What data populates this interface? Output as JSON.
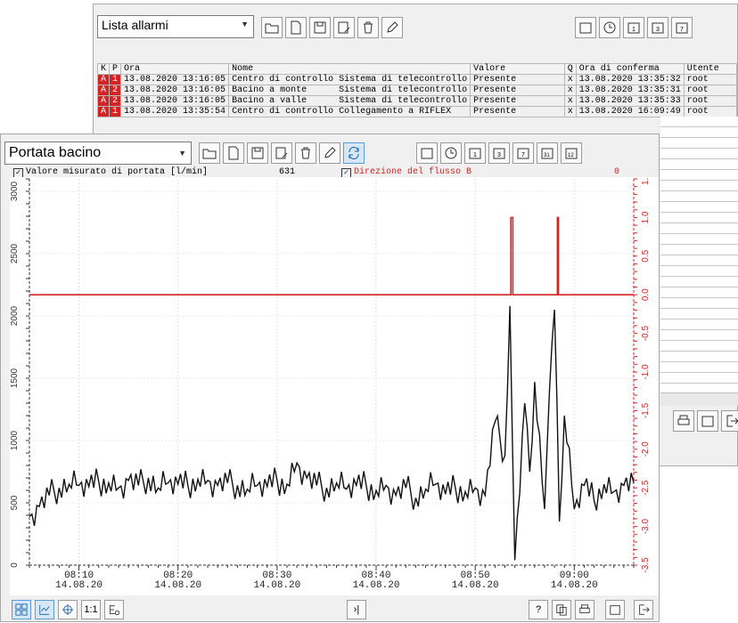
{
  "alarm_window": {
    "title": "Lista allarmi",
    "columns": [
      "K",
      "P",
      "Ora",
      "Nome",
      "",
      "Valore",
      "Q",
      "Ora di conferma",
      "Utente"
    ],
    "rows": [
      {
        "k": "A",
        "p": "1",
        "ora": "13.08.2020 13:16:05",
        "nome": "Centro di controllo",
        "desc": "Sistema di telecontrollo",
        "valore": "Presente",
        "q": "x",
        "conferma": "13.08.2020 13:35:32",
        "utente": "root"
      },
      {
        "k": "A",
        "p": "2",
        "ora": "13.08.2020 13:16:05",
        "nome": "Bacino a monte",
        "desc": "Sistema di telecontrollo",
        "valore": "Presente",
        "q": "x",
        "conferma": "13.08.2020 13:35:31",
        "utente": "root"
      },
      {
        "k": "A",
        "p": "2",
        "ora": "13.08.2020 13:16:05",
        "nome": "Bacino a valle",
        "desc": "Sistema di telecontrollo",
        "valore": "Presente",
        "q": "x",
        "conferma": "13.08.2020 13:35:33",
        "utente": "root"
      },
      {
        "k": "A",
        "p": "1",
        "ora": "13.08.2020 13:35:54",
        "nome": "Centro di controllo",
        "desc": "Collegamento a RIFLEX",
        "valore": "Presente",
        "q": "x",
        "conferma": "13.08.2020 16:09:49",
        "utente": "root"
      }
    ]
  },
  "chart_window": {
    "title": "Portata bacino",
    "series_flow_label": "Valore misurato di portata [l/min]",
    "series_flow_value": "631",
    "series_dir_label": "Direzione del flusso B",
    "series_dir_value": "0",
    "bottom_buttons": {
      "scale": "1:1",
      "end": "›|",
      "help": "?"
    }
  },
  "colors": {
    "accent_red": "#d42323",
    "flow_line": "#111111",
    "dir_line": "#d42323",
    "active_btn": "#d6e8f7"
  },
  "chart_data": {
    "type": "line",
    "x_ticks": [
      {
        "t": "08:10",
        "d": "14.08.20"
      },
      {
        "t": "08:20",
        "d": "14.08.20"
      },
      {
        "t": "08:30",
        "d": "14.08.20"
      },
      {
        "t": "08:40",
        "d": "14.08.20"
      },
      {
        "t": "08:50",
        "d": "14.08.20"
      },
      {
        "t": "09:00",
        "d": "14.08.20"
      }
    ],
    "xlim": [
      "08:05",
      "09:06"
    ],
    "y_left": {
      "ylim": [
        0,
        3100
      ],
      "ticks": [
        "0",
        "500",
        "1000",
        "1500",
        "2000",
        "2500",
        "3000"
      ]
    },
    "y_right": {
      "ylim": [
        -3.5,
        1.5
      ],
      "ticks": [
        "1.5",
        "1.0",
        "0.5",
        "0.0",
        "-0.5",
        "-1.0",
        "-1.5",
        "-2.0",
        "-2.5",
        "-3.0",
        "-3.5"
      ]
    },
    "series": [
      {
        "name": "Valore misurato di portata [l/min]",
        "points": [
          [
            "08:05",
            390
          ],
          [
            "08:06",
            470
          ],
          [
            "08:07",
            560
          ],
          [
            "08:08",
            620
          ],
          [
            "08:09",
            650
          ],
          [
            "08:10",
            640
          ],
          [
            "08:11",
            630
          ],
          [
            "08:12",
            670
          ],
          [
            "08:13",
            660
          ],
          [
            "08:14",
            620
          ],
          [
            "08:15",
            680
          ],
          [
            "08:16",
            640
          ],
          [
            "08:17",
            700
          ],
          [
            "08:18",
            620
          ],
          [
            "08:19",
            660
          ],
          [
            "08:20",
            650
          ],
          [
            "08:21",
            640
          ],
          [
            "08:22",
            690
          ],
          [
            "08:23",
            680
          ],
          [
            "08:24",
            640
          ],
          [
            "08:25",
            660
          ],
          [
            "08:26",
            640
          ],
          [
            "08:27",
            610
          ],
          [
            "08:28",
            640
          ],
          [
            "08:29",
            630
          ],
          [
            "08:30",
            680
          ],
          [
            "08:31",
            650
          ],
          [
            "08:32",
            820
          ],
          [
            "08:33",
            700
          ],
          [
            "08:34",
            640
          ],
          [
            "08:35",
            620
          ],
          [
            "08:36",
            660
          ],
          [
            "08:37",
            610
          ],
          [
            "08:38",
            640
          ],
          [
            "08:39",
            640
          ],
          [
            "08:40",
            600
          ],
          [
            "08:41",
            640
          ],
          [
            "08:42",
            560
          ],
          [
            "08:43",
            620
          ],
          [
            "08:44",
            540
          ],
          [
            "08:45",
            610
          ],
          [
            "08:46",
            650
          ],
          [
            "08:47",
            570
          ],
          [
            "08:48",
            620
          ],
          [
            "08:49",
            590
          ],
          [
            "08:50",
            620
          ],
          [
            "08:51",
            560
          ],
          [
            "08:52",
            1150
          ],
          [
            "08:53",
            880
          ],
          [
            "08:53.5",
            2080
          ],
          [
            "08:54",
            40
          ],
          [
            "08:55",
            1300
          ],
          [
            "08:55.5",
            750
          ],
          [
            "08:56",
            1470
          ],
          [
            "08:57",
            450
          ],
          [
            "08:57.5",
            1400
          ],
          [
            "08:58",
            2050
          ],
          [
            "08:58.5",
            350
          ],
          [
            "08:59",
            1200
          ],
          [
            "09:00",
            450
          ],
          [
            "09:01",
            640
          ],
          [
            "09:02",
            520
          ],
          [
            "09:03",
            650
          ],
          [
            "09:04",
            590
          ],
          [
            "09:05",
            640
          ],
          [
            "09:06",
            660
          ]
        ]
      },
      {
        "name": "Direzione del flusso B",
        "points": [
          [
            "08:05",
            0
          ],
          [
            "08:53.6",
            0
          ],
          [
            "08:53.6",
            1.0
          ],
          [
            "08:53.8",
            1.0
          ],
          [
            "08:53.8",
            0
          ],
          [
            "08:58.3",
            0
          ],
          [
            "08:58.3",
            1.0
          ],
          [
            "08:58.4",
            1.0
          ],
          [
            "08:58.4",
            0
          ],
          [
            "09:06",
            0
          ]
        ]
      }
    ]
  }
}
